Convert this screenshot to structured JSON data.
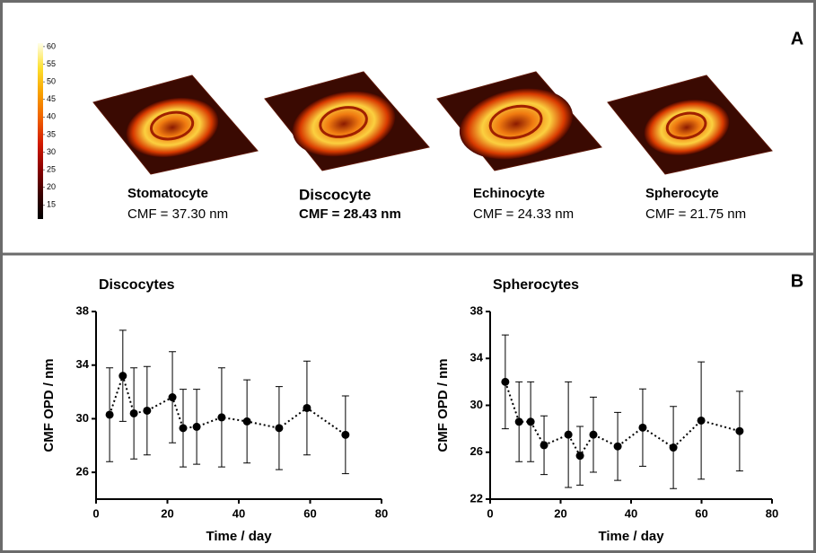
{
  "panel_a": {
    "label": "A",
    "colorbar": {
      "lim": [
        11,
        61
      ],
      "ticks": [
        15,
        20,
        25,
        30,
        35,
        40,
        45,
        50,
        55,
        60
      ],
      "colors": [
        "#000000",
        "#3a0000",
        "#8b0000",
        "#d21a00",
        "#f06000",
        "#f8a000",
        "#fde030",
        "#ffffe8"
      ]
    },
    "cells": [
      {
        "name": "Stomatocyte",
        "cmf": "CMF = 37.30 nm",
        "bold": false
      },
      {
        "name": "Discocyte",
        "cmf": "CMF = 28.43 nm",
        "bold": true
      },
      {
        "name": "Echinocyte",
        "cmf": "CMF = 24.33 nm",
        "bold": false
      },
      {
        "name": "Spherocyte",
        "cmf": "CMF = 21.75 nm",
        "bold": false
      }
    ]
  },
  "panel_b": {
    "label": "B"
  },
  "chart_data": [
    {
      "type": "line",
      "title": "Discocytes",
      "x_label": "Time / day",
      "y_label": "CMF OPD / nm",
      "x": [
        3.8,
        7.5,
        10.6,
        14.3,
        21.4,
        24.4,
        28.2,
        35.2,
        42.3,
        51.3,
        59.1,
        69.9
      ],
      "values": [
        30.3,
        33.2,
        30.4,
        30.6,
        31.6,
        29.3,
        29.4,
        30.1,
        29.8,
        29.3,
        30.8,
        28.8
      ],
      "errors": [
        3.5,
        3.4,
        3.4,
        3.3,
        3.4,
        2.9,
        2.8,
        3.7,
        3.1,
        3.1,
        3.5,
        2.9
      ],
      "color": "#000000",
      "line_style": "dotted",
      "xlim": [
        0,
        80
      ],
      "xticks": [
        0,
        20,
        40,
        60,
        80
      ],
      "ylim": [
        24,
        38
      ],
      "yticks": [
        26,
        30,
        34,
        38
      ]
    },
    {
      "type": "line",
      "title": "Spherocytes",
      "x_label": "Time / day",
      "y_label": "CMF OPD / nm",
      "x": [
        4.3,
        8.2,
        11.5,
        15.3,
        22.2,
        25.5,
        29.3,
        36.2,
        43.3,
        52,
        59.9,
        70.8
      ],
      "values": [
        32,
        28.6,
        28.6,
        26.6,
        27.5,
        25.7,
        27.5,
        26.5,
        28.1,
        26.4,
        28.7,
        27.8
      ],
      "errors": [
        4,
        3.4,
        3.4,
        2.5,
        4.5,
        2.5,
        3.2,
        2.9,
        3.3,
        3.5,
        5,
        3.4
      ],
      "color": "#000000",
      "line_style": "dotted",
      "xlim": [
        0,
        80
      ],
      "xticks": [
        0,
        20,
        40,
        60,
        80
      ],
      "ylim": [
        22,
        38
      ],
      "yticks": [
        22,
        26,
        30,
        34,
        38
      ]
    }
  ]
}
